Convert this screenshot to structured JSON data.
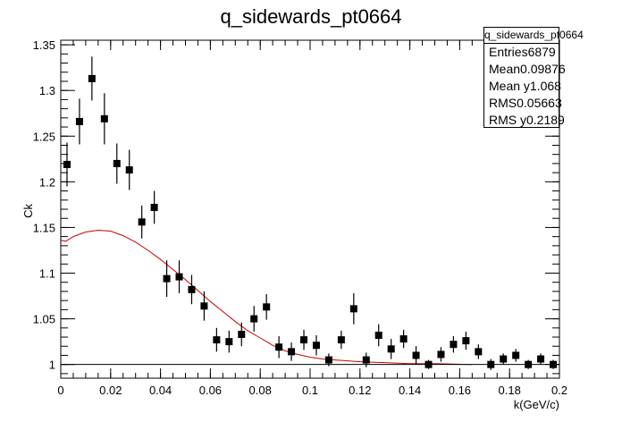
{
  "chart_data": {
    "type": "scatter",
    "title": "q_sidewards_pt0664",
    "xlabel": "k(GeV/c)",
    "ylabel": "Ck",
    "xlim": [
      0,
      0.2
    ],
    "ylim": [
      0.985,
      1.355
    ],
    "xticks": [
      0,
      0.02,
      0.04,
      0.06,
      0.08,
      0.1,
      0.12,
      0.14,
      0.16,
      0.18,
      0.2
    ],
    "xtick_labels": [
      "0",
      "0.02",
      "0.04",
      "0.06",
      "0.08",
      "0.1",
      "0.12",
      "0.14",
      "0.16",
      "0.18",
      "0.2"
    ],
    "yticks": [
      1,
      1.05,
      1.1,
      1.15,
      1.2,
      1.25,
      1.3,
      1.35
    ],
    "ytick_labels": [
      "1",
      "1.05",
      "1.1",
      "1.15",
      "1.2",
      "1.25",
      "1.3",
      "1.35"
    ],
    "reference_line": 1.0,
    "series": [
      {
        "kind": "points_with_errors",
        "color": "#000000",
        "x": [
          0.0025,
          0.0075,
          0.0125,
          0.0175,
          0.0225,
          0.0275,
          0.0325,
          0.0375,
          0.0425,
          0.0475,
          0.0525,
          0.0575,
          0.0625,
          0.0675,
          0.0725,
          0.0775,
          0.0825,
          0.0875,
          0.0925,
          0.0975,
          0.1025,
          0.1075,
          0.1125,
          0.1175,
          0.1225,
          0.1275,
          0.1325,
          0.1375,
          0.1425,
          0.1475,
          0.1525,
          0.1575,
          0.1625,
          0.1675,
          0.1725,
          0.1775,
          0.1825,
          0.1875,
          0.1925,
          0.1975
        ],
        "y": [
          1.219,
          1.266,
          1.313,
          1.269,
          1.22,
          1.213,
          1.156,
          1.172,
          1.094,
          1.096,
          1.082,
          1.064,
          1.027,
          1.025,
          1.033,
          1.05,
          1.063,
          1.019,
          1.014,
          1.027,
          1.021,
          1.005,
          1.027,
          1.061,
          1.005,
          1.032,
          1.017,
          1.028,
          1.01,
          1.0,
          1.011,
          1.022,
          1.026,
          1.014,
          1.0,
          1.006,
          1.01,
          1.0,
          1.006,
          1.0
        ],
        "yerr": [
          0.024,
          0.025,
          0.024,
          0.028,
          0.022,
          0.022,
          0.018,
          0.018,
          0.02,
          0.018,
          0.016,
          0.016,
          0.013,
          0.012,
          0.013,
          0.014,
          0.014,
          0.012,
          0.01,
          0.011,
          0.011,
          0.007,
          0.01,
          0.017,
          0.008,
          0.012,
          0.011,
          0.01,
          0.01,
          0.005,
          0.008,
          0.009,
          0.01,
          0.008,
          0.006,
          0.006,
          0.007,
          0.005,
          0.006,
          0.005
        ]
      },
      {
        "kind": "curve",
        "color": "#cc0000",
        "x": [
          0.0,
          0.002,
          0.005,
          0.01,
          0.015,
          0.02,
          0.025,
          0.03,
          0.035,
          0.04,
          0.045,
          0.05,
          0.055,
          0.06,
          0.065,
          0.07,
          0.075,
          0.08,
          0.085,
          0.09,
          0.095,
          0.1,
          0.105,
          0.11,
          0.115,
          0.12,
          0.13,
          0.14,
          0.15,
          0.165
        ],
        "y": [
          1.136,
          1.135,
          1.14,
          1.145,
          1.147,
          1.146,
          1.141,
          1.134,
          1.125,
          1.115,
          1.104,
          1.093,
          1.081,
          1.069,
          1.058,
          1.047,
          1.037,
          1.029,
          1.021,
          1.015,
          1.011,
          1.008,
          1.006,
          1.005,
          1.004,
          1.003,
          1.002,
          1.001,
          1.001,
          1.0
        ]
      }
    ],
    "stats_box": {
      "title": "q_sidewards_pt0664",
      "rows": [
        {
          "label": "Entries",
          "value": "6879"
        },
        {
          "label": "Mean",
          "value": "0.09876"
        },
        {
          "label": "Mean y",
          "value": "1.068"
        },
        {
          "label": "RMS",
          "value": "0.05663"
        },
        {
          "label": "RMS y",
          "value": "0.2189"
        }
      ]
    }
  }
}
